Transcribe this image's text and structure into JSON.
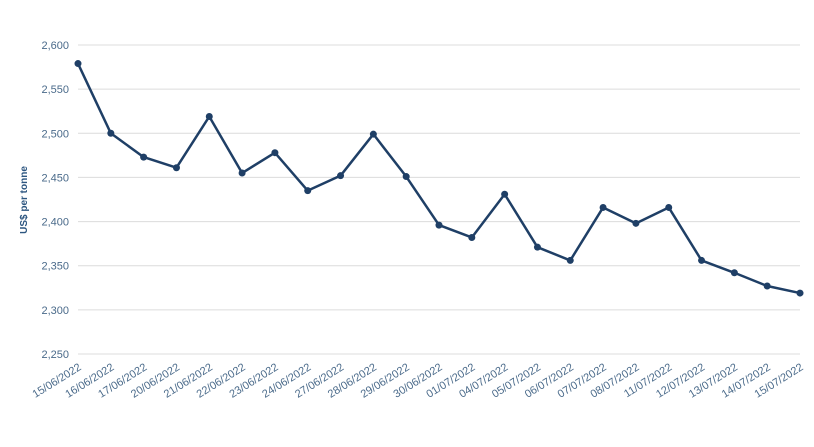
{
  "chart_data": {
    "type": "line",
    "title": "",
    "xlabel": "",
    "ylabel": "US$ per tonne",
    "ylim": [
      2250,
      2600
    ],
    "y_ticks": [
      "2,250",
      "2,300",
      "2,350",
      "2,400",
      "2,450",
      "2,500",
      "2,550",
      "2,600"
    ],
    "grid": true,
    "legend": "none",
    "categories": [
      "15/06/2022",
      "16/06/2022",
      "17/06/2022",
      "20/06/2022",
      "21/06/2022",
      "22/06/2022",
      "23/06/2022",
      "24/06/2022",
      "27/06/2022",
      "28/06/2022",
      "29/06/2022",
      "30/06/2022",
      "01/07/2022",
      "04/07/2022",
      "05/07/2022",
      "06/07/2022",
      "07/07/2022",
      "08/07/2022",
      "11/07/2022",
      "12/07/2022",
      "13/07/2022",
      "14/07/2022",
      "15/07/2022"
    ],
    "series": [
      {
        "values": [
          2579,
          2500,
          2473,
          2461,
          2519,
          2455,
          2478,
          2435,
          2452,
          2499,
          2451,
          2396,
          2382,
          2431,
          2371,
          2356,
          2416,
          2398,
          2416,
          2356,
          2342,
          2327,
          2319
        ],
        "color": "#1f3f66"
      }
    ],
    "colors": {
      "grid": "#dcdcdc",
      "tick_text": "#4a6a8a",
      "axis_label": "#2d5680"
    }
  }
}
